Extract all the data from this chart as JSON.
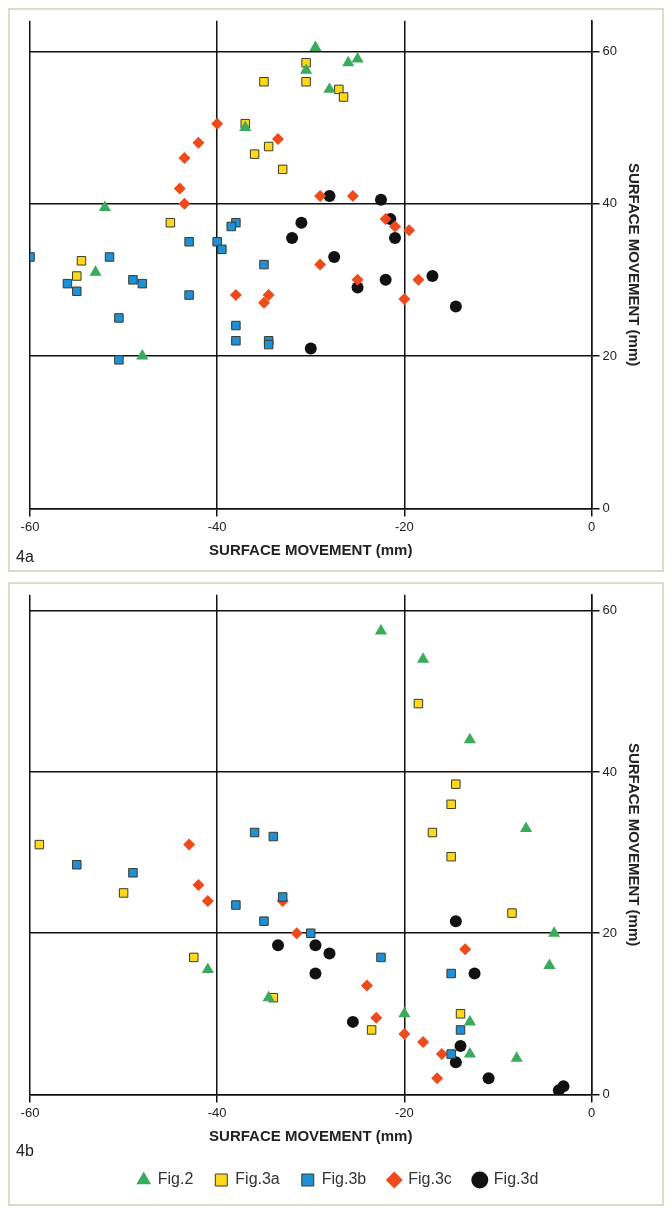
{
  "chart_data": [
    {
      "type": "scatter",
      "xlabel": "SURFACE MOVEMENT (mm)",
      "ylabel": "SURFACE MOVEMENT (mm)",
      "annotations": [
        "4a"
      ],
      "xlim": [
        -60,
        0
      ],
      "ylim": [
        0,
        64
      ],
      "xticks": [
        -60,
        -40,
        -20,
        0
      ],
      "yticks": [
        0,
        20,
        40,
        60
      ],
      "grid": true,
      "legend": false,
      "series": [
        {
          "color": "#3aaa5c",
          "marker": "triangle",
          "x": [
            -29.5,
            -30.5,
            -26,
            -25,
            -28,
            -37,
            -52,
            -53,
            -48
          ],
          "values": [
            60.5,
            57.5,
            58.5,
            59,
            55,
            50,
            39.5,
            31,
            20
          ]
        },
        {
          "color": "#ffd81a",
          "marker": "square",
          "x": [
            -30.5,
            -35,
            -30.5,
            -27,
            -26.5,
            -37,
            -36,
            -34.5,
            -33,
            -45,
            -54.5,
            -55
          ],
          "values": [
            58.5,
            56,
            56,
            55,
            54,
            50.5,
            46.5,
            47.5,
            44.5,
            37.5,
            32.5,
            30.5
          ]
        },
        {
          "color": "#1f8fd6",
          "marker": "square",
          "x": [
            -60,
            -51.5,
            -56,
            -55,
            -49,
            -48,
            -50.5,
            -50.5,
            -43,
            -43,
            -38,
            -38.5,
            -40,
            -39.5,
            -35,
            -38,
            -38,
            -34.5,
            -34.5
          ],
          "values": [
            33,
            33,
            29.5,
            28.5,
            30,
            29.5,
            25,
            19.5,
            35,
            28,
            37.5,
            37,
            35,
            34,
            32,
            24,
            22,
            22,
            21.5
          ]
        },
        {
          "color": "#ee4a1c",
          "marker": "diamond",
          "x": [
            -40,
            -42,
            -43.5,
            -44,
            -43.5,
            -33.5,
            -29,
            -25.5,
            -22,
            -21,
            -19.5,
            -38,
            -35,
            -34.5,
            -29,
            -25,
            -18.5,
            -20
          ],
          "values": [
            50.5,
            48,
            46,
            42,
            40,
            48.5,
            41,
            41,
            38,
            37,
            36.5,
            28,
            27,
            28,
            32,
            30,
            30,
            27.5
          ]
        },
        {
          "color": "#111111",
          "marker": "circle",
          "x": [
            -28,
            -22.5,
            -21.5,
            -21,
            -31,
            -32,
            -27.5,
            -25,
            -22,
            -17,
            -14.5,
            -30
          ],
          "values": [
            41,
            40.5,
            38,
            35.5,
            37.5,
            35.5,
            33,
            29,
            30,
            30.5,
            26.5,
            21
          ]
        }
      ]
    },
    {
      "type": "scatter",
      "xlabel": "SURFACE MOVEMENT (mm)",
      "ylabel": "SURFACE MOVEMENT (mm)",
      "annotations": [
        "4b"
      ],
      "xlim": [
        -60,
        0
      ],
      "ylim": [
        0,
        62
      ],
      "xticks": [
        -60,
        -40,
        -20,
        0
      ],
      "yticks": [
        0,
        20,
        40,
        60
      ],
      "grid": true,
      "legend": "bottom",
      "series": [
        {
          "name": "Fig.2",
          "color": "#3aaa5c",
          "marker": "triangle",
          "x": [
            -22.5,
            -18,
            -13,
            -7,
            -4,
            -4.5,
            -41,
            -34.5,
            -20,
            -13,
            -13,
            -8
          ],
          "values": [
            57.5,
            54,
            44,
            33,
            20,
            16,
            15.5,
            12,
            10,
            9,
            5,
            4.5
          ]
        },
        {
          "name": "Fig.3a",
          "color": "#ffd81a",
          "marker": "square",
          "x": [
            -59,
            -50,
            -42.5,
            -34,
            -23.5,
            -18.5,
            -14.5,
            -15,
            -17,
            -15,
            -8.5,
            -14
          ],
          "values": [
            31,
            25,
            17,
            12,
            8,
            48.5,
            38.5,
            36,
            32.5,
            29.5,
            22.5,
            10
          ]
        },
        {
          "name": "Fig.3b",
          "color": "#1f8fd6",
          "marker": "square",
          "x": [
            -55,
            -49,
            -36,
            -34,
            -38,
            -33,
            -35,
            -30,
            -22.5,
            -15,
            -14,
            -15
          ],
          "values": [
            28.5,
            27.5,
            32.5,
            32,
            23.5,
            24.5,
            21.5,
            20,
            17,
            15,
            8,
            5
          ]
        },
        {
          "name": "Fig.3c",
          "color": "#ee4a1c",
          "marker": "diamond",
          "x": [
            -43,
            -42,
            -41,
            -33,
            -31.5,
            -24,
            -23,
            -20,
            -18,
            -16,
            -16.5,
            -13.5
          ],
          "values": [
            31,
            26,
            24,
            24,
            20,
            13.5,
            9.5,
            7.5,
            6.5,
            5,
            2,
            18
          ]
        },
        {
          "name": "Fig.3d",
          "color": "#111111",
          "marker": "circle",
          "x": [
            -33.5,
            -29.5,
            -28,
            -29.5,
            -25.5,
            -14.5,
            -12.5,
            -14,
            -14.5,
            -11,
            -3.5,
            -3
          ],
          "values": [
            18.5,
            18.5,
            17.5,
            15,
            9,
            21.5,
            15,
            6,
            4,
            2,
            0.5,
            1
          ]
        }
      ]
    }
  ]
}
